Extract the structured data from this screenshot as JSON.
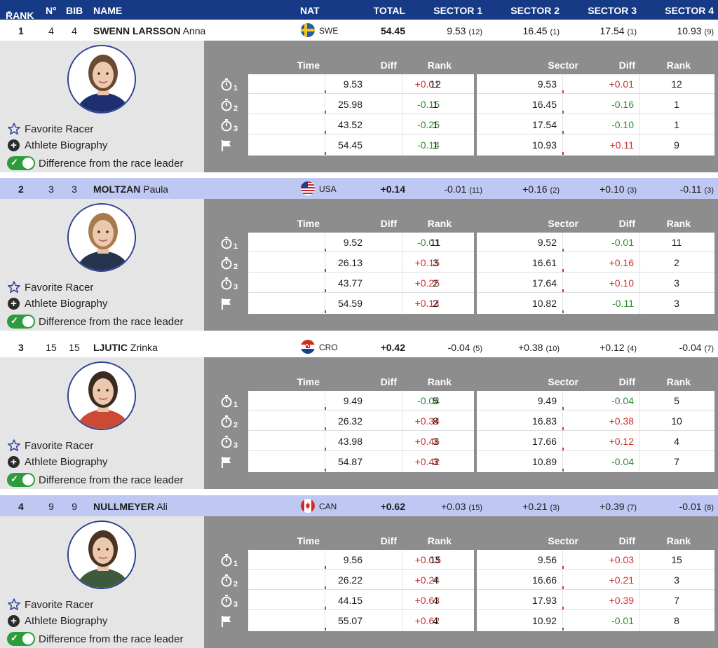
{
  "header": {
    "rank": "RANK",
    "no": "N°",
    "bib": "BIB",
    "name": "NAME",
    "nat": "NAT",
    "total": "TOTAL",
    "sector1": "SECTOR 1",
    "sector2": "SECTOR 2",
    "sector3": "SECTOR 3",
    "sector4": "SECTOR 4"
  },
  "labels": {
    "time": "Time",
    "diff": "Diff",
    "rank": "Rank",
    "sector": "Sector",
    "favorite": "Favorite Racer",
    "biography": "Athlete Biography",
    "difference": "Difference from the race leader"
  },
  "colors": {
    "header_bg": "#163a85",
    "highlight_row": "#bec8f2",
    "panel_gray": "#8d8d8d",
    "positive_diff": "#d0312d",
    "negative_diff": "#2e8b32",
    "toggle_on": "#2e9b3c"
  },
  "icons": [
    "star-icon",
    "plus-circle-icon",
    "toggle-icon",
    "stopwatch-icon",
    "flag-icon",
    "sort-caret-icon"
  ],
  "racers": [
    {
      "rank": "1",
      "no": "4",
      "bib": "4",
      "last": "SWENN LARSSON",
      "first": "Anna",
      "nat": "SWE",
      "total": "54.45",
      "s1": "9.53",
      "s1r": "(12)",
      "s2": "16.45",
      "s2r": "(1)",
      "s3": "17.54",
      "s3r": "(1)",
      "s4": "10.93",
      "s4r": "(9)",
      "splits": [
        {
          "split": "1",
          "time": "9.53",
          "diff": "+0.01",
          "rank": "12",
          "sector": "9.53",
          "sdiff": "+0.01",
          "srank": "12"
        },
        {
          "split": "2",
          "time": "25.98",
          "diff": "-0.15",
          "rank": "1",
          "sector": "16.45",
          "sdiff": "-0.16",
          "srank": "1"
        },
        {
          "split": "3",
          "time": "43.52",
          "diff": "-0.25",
          "rank": "1",
          "sector": "17.54",
          "sdiff": "-0.10",
          "srank": "1"
        },
        {
          "split": "",
          "time": "54.45",
          "diff": "-0.14",
          "rank": "1",
          "sector": "10.93",
          "sdiff": "+0.11",
          "srank": "9"
        }
      ]
    },
    {
      "rank": "2",
      "no": "3",
      "bib": "3",
      "last": "MOLTZAN",
      "first": "Paula",
      "nat": "USA",
      "total": "+0.14",
      "s1": "-0.01",
      "s1r": "(11)",
      "s2": "+0.16",
      "s2r": "(2)",
      "s3": "+0.10",
      "s3r": "(3)",
      "s4": "-0.11",
      "s4r": "(3)",
      "splits": [
        {
          "split": "1",
          "time": "9.52",
          "diff": "-0.01",
          "rank": "11",
          "sector": "9.52",
          "sdiff": "-0.01",
          "srank": "11"
        },
        {
          "split": "2",
          "time": "26.13",
          "diff": "+0.15",
          "rank": "3",
          "sector": "16.61",
          "sdiff": "+0.16",
          "srank": "2"
        },
        {
          "split": "3",
          "time": "43.77",
          "diff": "+0.25",
          "rank": "2",
          "sector": "17.64",
          "sdiff": "+0.10",
          "srank": "3"
        },
        {
          "split": "",
          "time": "54.59",
          "diff": "+0.14",
          "rank": "2",
          "sector": "10.82",
          "sdiff": "-0.11",
          "srank": "3"
        }
      ]
    },
    {
      "rank": "3",
      "no": "15",
      "bib": "15",
      "last": "LJUTIC",
      "first": "Zrinka",
      "nat": "CRO",
      "total": "+0.42",
      "s1": "-0.04",
      "s1r": "(5)",
      "s2": "+0.38",
      "s2r": "(10)",
      "s3": "+0.12",
      "s3r": "(4)",
      "s4": "-0.04",
      "s4r": "(7)",
      "splits": [
        {
          "split": "1",
          "time": "9.49",
          "diff": "-0.04",
          "rank": "5",
          "sector": "9.49",
          "sdiff": "-0.04",
          "srank": "5"
        },
        {
          "split": "2",
          "time": "26.32",
          "diff": "+0.34",
          "rank": "8",
          "sector": "16.83",
          "sdiff": "+0.38",
          "srank": "10"
        },
        {
          "split": "3",
          "time": "43.98",
          "diff": "+0.46",
          "rank": "3",
          "sector": "17.66",
          "sdiff": "+0.12",
          "srank": "4"
        },
        {
          "split": "",
          "time": "54.87",
          "diff": "+0.42",
          "rank": "3",
          "sector": "10.89",
          "sdiff": "-0.04",
          "srank": "7"
        }
      ]
    },
    {
      "rank": "4",
      "no": "9",
      "bib": "9",
      "last": "NULLMEYER",
      "first": "Ali",
      "nat": "CAN",
      "total": "+0.62",
      "s1": "+0.03",
      "s1r": "(15)",
      "s2": "+0.21",
      "s2r": "(3)",
      "s3": "+0.39",
      "s3r": "(7)",
      "s4": "-0.01",
      "s4r": "(8)",
      "splits": [
        {
          "split": "1",
          "time": "9.56",
          "diff": "+0.03",
          "rank": "15",
          "sector": "9.56",
          "sdiff": "+0.03",
          "srank": "15"
        },
        {
          "split": "2",
          "time": "26.22",
          "diff": "+0.24",
          "rank": "4",
          "sector": "16.66",
          "sdiff": "+0.21",
          "srank": "3"
        },
        {
          "split": "3",
          "time": "44.15",
          "diff": "+0.63",
          "rank": "4",
          "sector": "17.93",
          "sdiff": "+0.39",
          "srank": "7"
        },
        {
          "split": "",
          "time": "55.07",
          "diff": "+0.62",
          "rank": "4",
          "sector": "10.92",
          "sdiff": "-0.01",
          "srank": "8"
        }
      ]
    }
  ]
}
